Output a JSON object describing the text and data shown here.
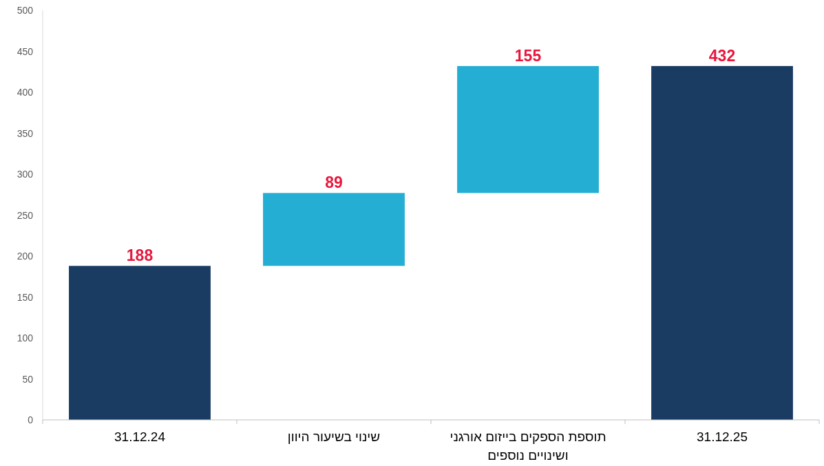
{
  "chart_data": {
    "type": "bar",
    "categories": [
      "31.12.24",
      "שינוי בשיעור היוון",
      "תוספת הספקים בייזום אורגני ושינויים נוספים",
      "31.12.25"
    ],
    "values": [
      188,
      89,
      155,
      432
    ],
    "base": [
      0,
      188,
      277,
      0
    ],
    "colors": [
      "#1a3c63",
      "#25aed3",
      "#25aed3",
      "#1a3c63"
    ],
    "data_labels": true,
    "ylim": [
      0,
      500
    ],
    "yticks": [
      0,
      50,
      100,
      150,
      200,
      250,
      300,
      350,
      400,
      450,
      500
    ],
    "grid": false
  }
}
